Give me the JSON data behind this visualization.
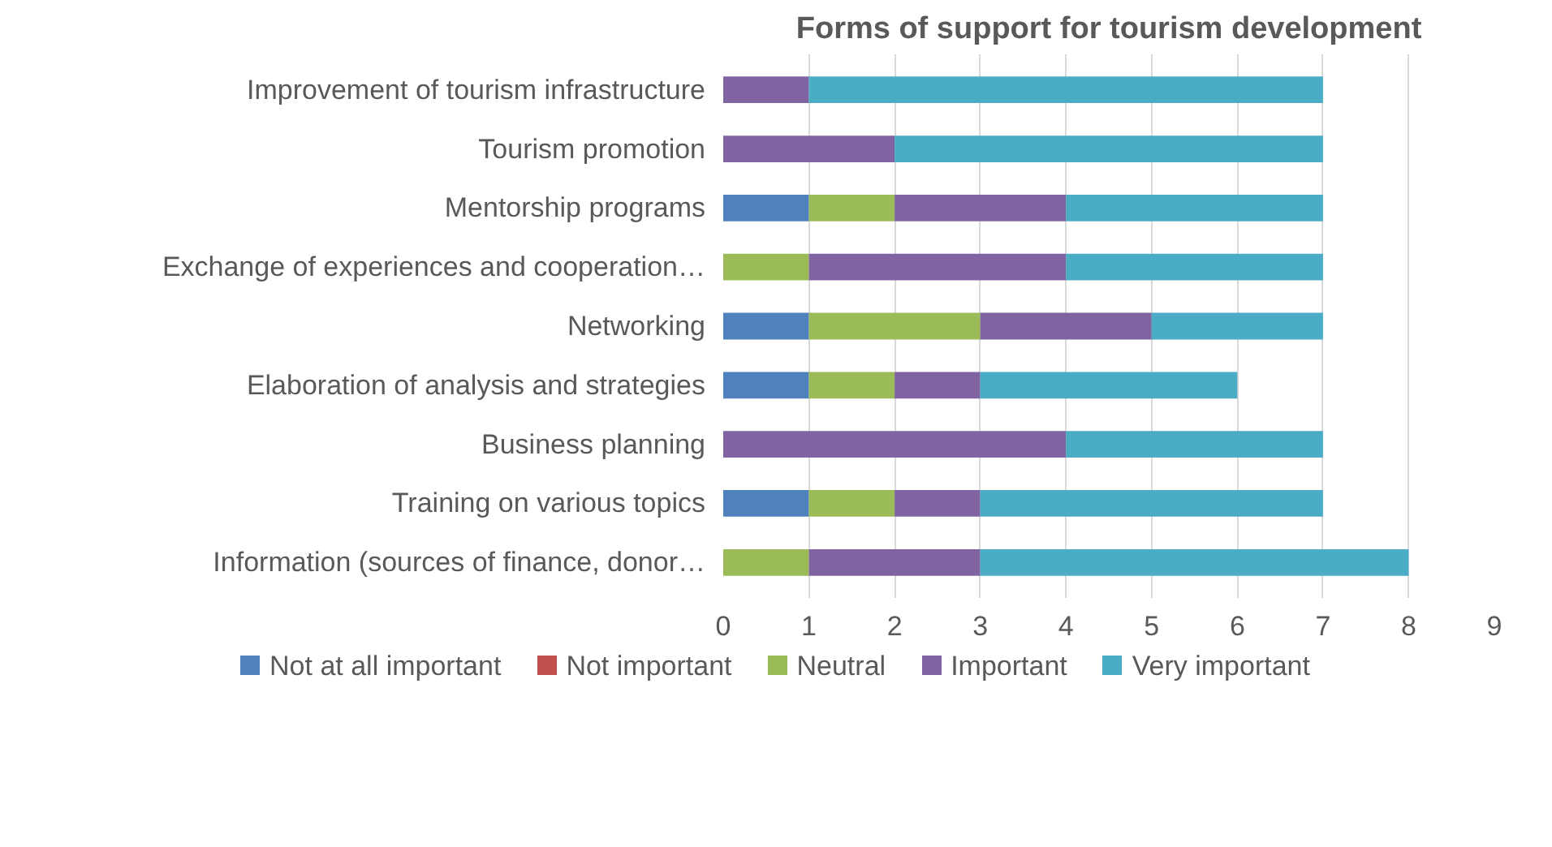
{
  "chart_data": {
    "type": "bar",
    "orientation": "horizontal",
    "stacked": true,
    "title": "Forms of support for tourism development",
    "categories": [
      "Improvement of tourism infrastructure",
      "Tourism promotion",
      "Mentorship programs",
      "Exchange of experiences and cooperation…",
      "Networking",
      "Elaboration of analysis and strategies",
      "Business planning",
      "Training on various topics",
      "Information (sources of finance, donor…"
    ],
    "series": [
      {
        "name": "Not at all important",
        "color": "#4f81bd",
        "values": [
          0,
          0,
          1,
          0,
          1,
          1,
          0,
          1,
          0
        ]
      },
      {
        "name": "Not important",
        "color": "#c0504d",
        "values": [
          0,
          0,
          0,
          0,
          0,
          0,
          0,
          0,
          0
        ]
      },
      {
        "name": "Neutral",
        "color": "#9bbb59",
        "values": [
          0,
          0,
          1,
          1,
          2,
          1,
          0,
          1,
          1
        ]
      },
      {
        "name": "Important",
        "color": "#8064a2",
        "values": [
          1,
          2,
          2,
          3,
          2,
          1,
          4,
          1,
          2
        ]
      },
      {
        "name": "Very important",
        "color": "#4bacc6",
        "values": [
          6,
          5,
          3,
          3,
          2,
          3,
          3,
          4,
          5
        ]
      }
    ],
    "xlim": [
      0,
      9
    ],
    "xticks": [
      0,
      1,
      2,
      3,
      4,
      5,
      6,
      7,
      8,
      9
    ],
    "grid": "x",
    "legend": "bottom"
  }
}
